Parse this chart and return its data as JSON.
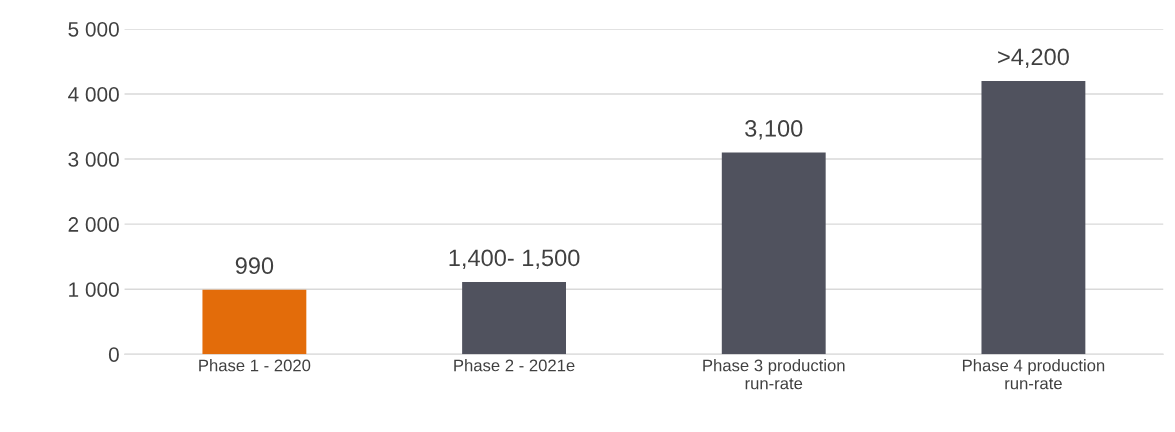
{
  "chart_data": {
    "type": "bar",
    "categories": [
      "Phase 1 - 2020",
      "Phase 2 - 2021e",
      "Phase 3 production\nrun-rate",
      "Phase 4 production\nrun-rate"
    ],
    "values": [
      990,
      1110,
      3100,
      4200
    ],
    "colors": [
      "#e36c0a",
      "#50525e",
      "#50525e",
      "#50525e"
    ],
    "value_labels": [
      "990",
      "1,400- 1,500",
      "3,100",
      ">4,200"
    ],
    "ylim": [
      0,
      5000
    ],
    "yticks": [
      {
        "value": 0,
        "label": "0"
      },
      {
        "value": 1000,
        "label": "1 000"
      },
      {
        "value": 2000,
        "label": "2 000"
      },
      {
        "value": 3000,
        "label": "3 000"
      },
      {
        "value": 4000,
        "label": "4 000"
      },
      {
        "value": 5000,
        "label": "5 000"
      }
    ],
    "grid": "y",
    "legend": false
  }
}
